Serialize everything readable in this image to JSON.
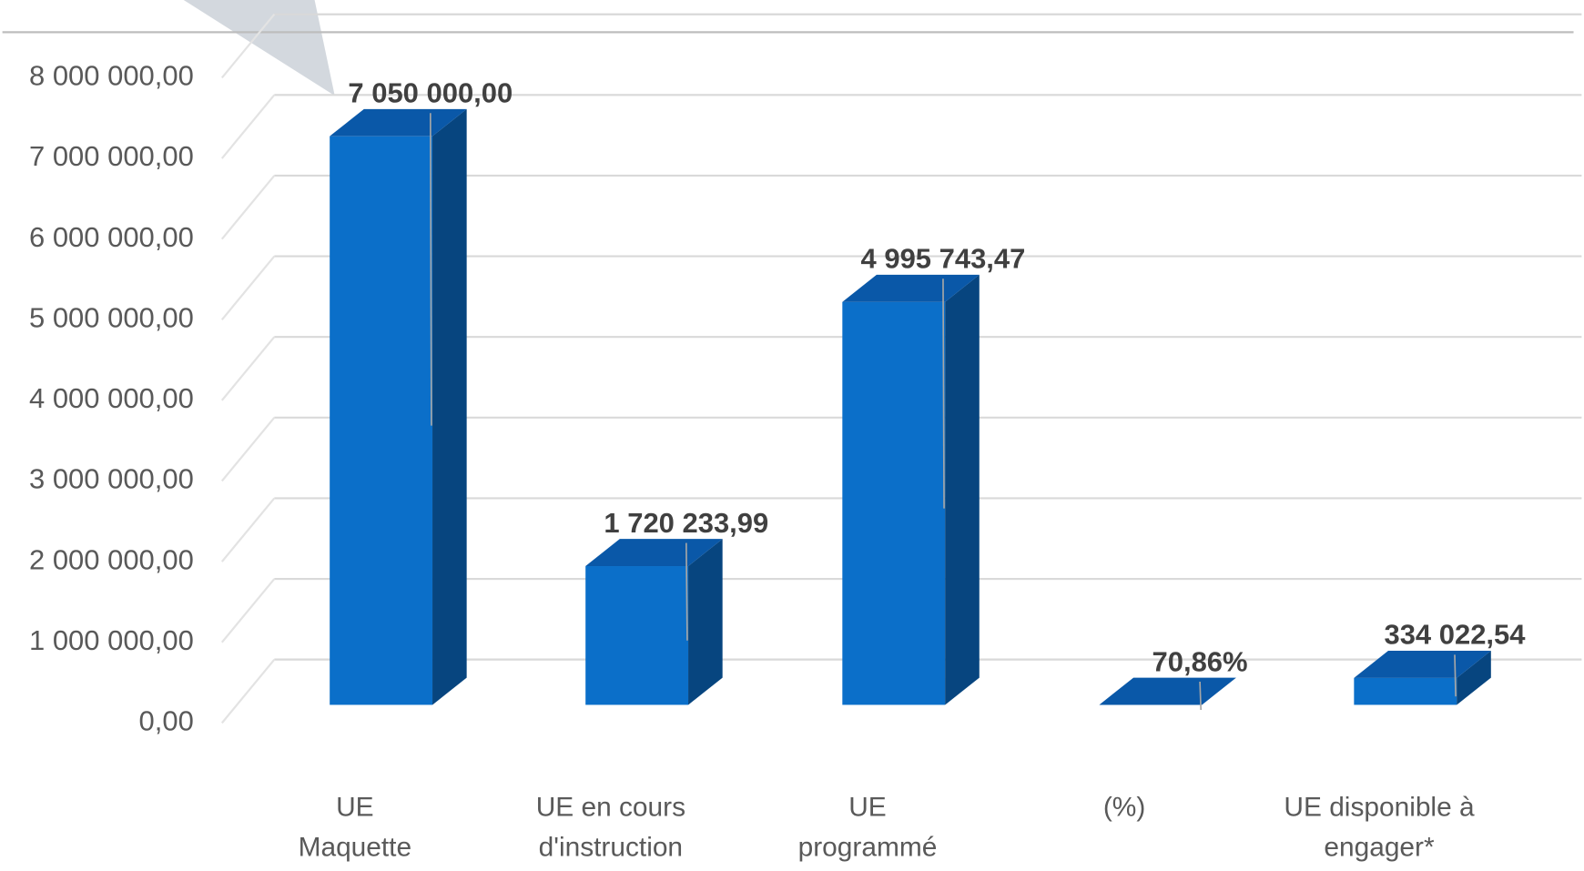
{
  "chart_data": {
    "type": "bar3d",
    "categories": [
      "UE\nMaquette",
      "UE  en cours\nd'instruction",
      "UE\nprogrammé",
      "(%)",
      "UE disponible à\nengager*"
    ],
    "values": [
      7050000,
      1720233.99,
      4995743.47,
      70.86,
      334022.54
    ],
    "value_labels": [
      "7 050 000,00",
      "1 720 233,99",
      "4 995 743,47",
      "70,86%",
      "334 022,54"
    ],
    "color": "#0b6fc9",
    "ylim": [
      0,
      8000000
    ],
    "yticks": [
      {
        "value": 0,
        "label": "0,00"
      },
      {
        "value": 1000000,
        "label": "1 000 000,00"
      },
      {
        "value": 2000000,
        "label": "2 000 000,00"
      },
      {
        "value": 3000000,
        "label": "3 000 000,00"
      },
      {
        "value": 4000000,
        "label": "4 000 000,00"
      },
      {
        "value": 5000000,
        "label": "5 000 000,00"
      },
      {
        "value": 6000000,
        "label": "6 000 000,00"
      },
      {
        "value": 7000000,
        "label": "7 000 000,00"
      },
      {
        "value": 8000000,
        "label": "8 000 000,00"
      }
    ],
    "grid": true
  }
}
